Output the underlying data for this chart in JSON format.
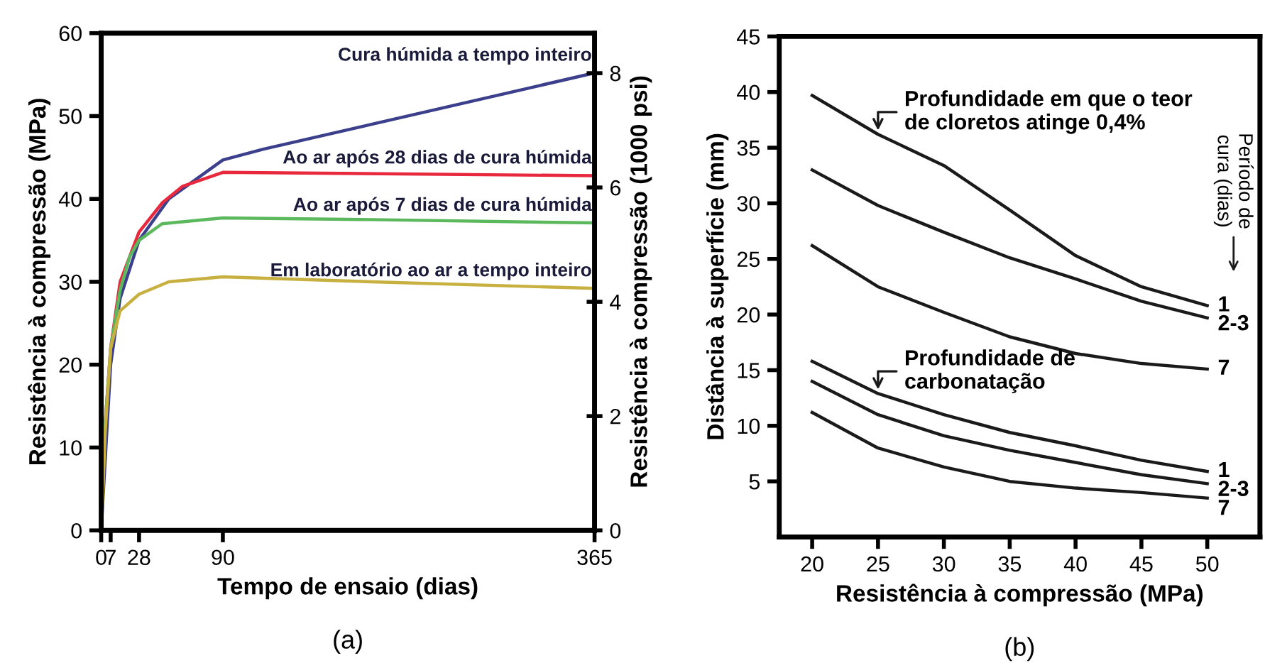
{
  "chart_data": [
    {
      "type": "line",
      "xlabel": "Tempo de ensaio (dias)",
      "ylabel": "Resistência à compressão (MPa)",
      "y2label": "Resistência à compressão (1000 psi)",
      "xlim": [
        0,
        365
      ],
      "xticks": [
        0,
        7,
        28,
        90,
        365
      ],
      "ylim": [
        0,
        60
      ],
      "yticks": [
        0,
        10,
        20,
        30,
        40,
        50,
        60
      ],
      "y2lim": [
        0,
        8.7
      ],
      "y2ticks": [
        0,
        2,
        4,
        6,
        8
      ],
      "grid": false,
      "legend": false,
      "marker": "none",
      "line_style": "solid",
      "series": [
        {
          "name": "Cura húmida a tempo inteiro",
          "color": "#3b3f8c",
          "x": [
            0,
            7,
            14,
            28,
            50,
            90,
            120,
            200,
            365
          ],
          "values": [
            0,
            20,
            28,
            35,
            40,
            44.7,
            46,
            49,
            55.2
          ]
        },
        {
          "name": "Ao ar após 28 dias de cura húmida",
          "color": "#e8283c",
          "x": [
            0,
            3,
            7,
            14,
            28,
            45,
            60,
            90,
            365
          ],
          "values": [
            0,
            13,
            22,
            30,
            36,
            39.5,
            41.5,
            43.2,
            42.8
          ]
        },
        {
          "name": "Ao ar após 7 dias de cura húmida",
          "color": "#5cb85c",
          "x": [
            0,
            3,
            7,
            14,
            21,
            28,
            45,
            90,
            200,
            365
          ],
          "values": [
            0,
            13,
            22,
            29,
            33,
            35,
            37,
            37.7,
            37.5,
            37.1
          ]
        },
        {
          "name": "Em laboratório ao ar a tempo inteiro",
          "color": "#c8b040",
          "x": [
            0,
            3,
            7,
            14,
            28,
            50,
            90,
            200,
            365
          ],
          "values": [
            0,
            12,
            22,
            26.5,
            28.5,
            30,
            30.6,
            30,
            29.2
          ]
        }
      ],
      "annotations": [
        "(a)"
      ]
    },
    {
      "type": "line",
      "xlabel": "Resistência à compressão (MPa)",
      "ylabel": "Distância à superfície (mm)",
      "xlim": [
        17.5,
        54
      ],
      "xticks": [
        20,
        25,
        30,
        35,
        40,
        45,
        50
      ],
      "ylim": [
        0,
        45
      ],
      "yticks": [
        5,
        10,
        15,
        20,
        25,
        30,
        35,
        40,
        45
      ],
      "grid": false,
      "legend": false,
      "marker": "none",
      "line_style": "solid",
      "x": [
        20,
        25,
        30,
        35,
        40,
        45,
        50
      ],
      "series": [
        {
          "name": "1",
          "color": "#1a1a1a",
          "values": [
            39.7,
            36.2,
            33.4,
            29.4,
            25.3,
            22.5,
            20.8
          ]
        },
        {
          "name": "2-3",
          "color": "#1a1a1a",
          "values": [
            33.0,
            29.8,
            27.4,
            25.1,
            23.2,
            21.2,
            19.7
          ]
        },
        {
          "name": "7",
          "color": "#1a1a1a",
          "values": [
            26.2,
            22.5,
            20.2,
            18.0,
            16.5,
            15.6,
            15.1
          ]
        },
        {
          "name": "1",
          "color": "#1a1a1a",
          "values": [
            15.8,
            12.9,
            11.0,
            9.4,
            8.2,
            6.9,
            5.9
          ]
        },
        {
          "name": "2-3",
          "color": "#1a1a1a",
          "values": [
            14.0,
            11.0,
            9.1,
            7.8,
            6.7,
            5.6,
            4.8
          ]
        },
        {
          "name": "7",
          "color": "#1a1a1a",
          "values": [
            11.2,
            8.0,
            6.3,
            5.0,
            4.4,
            4.0,
            3.5
          ]
        }
      ],
      "annotations": [
        {
          "text": "Profundidade em que o teor\nde cloretos atinge 0,4%",
          "x": 25,
          "y": 36.2
        },
        {
          "text": "Profundidade de\ncarbonatação",
          "x": 25,
          "y": 12.9
        },
        "Período de\ncura (dias)",
        "(b)"
      ]
    }
  ]
}
